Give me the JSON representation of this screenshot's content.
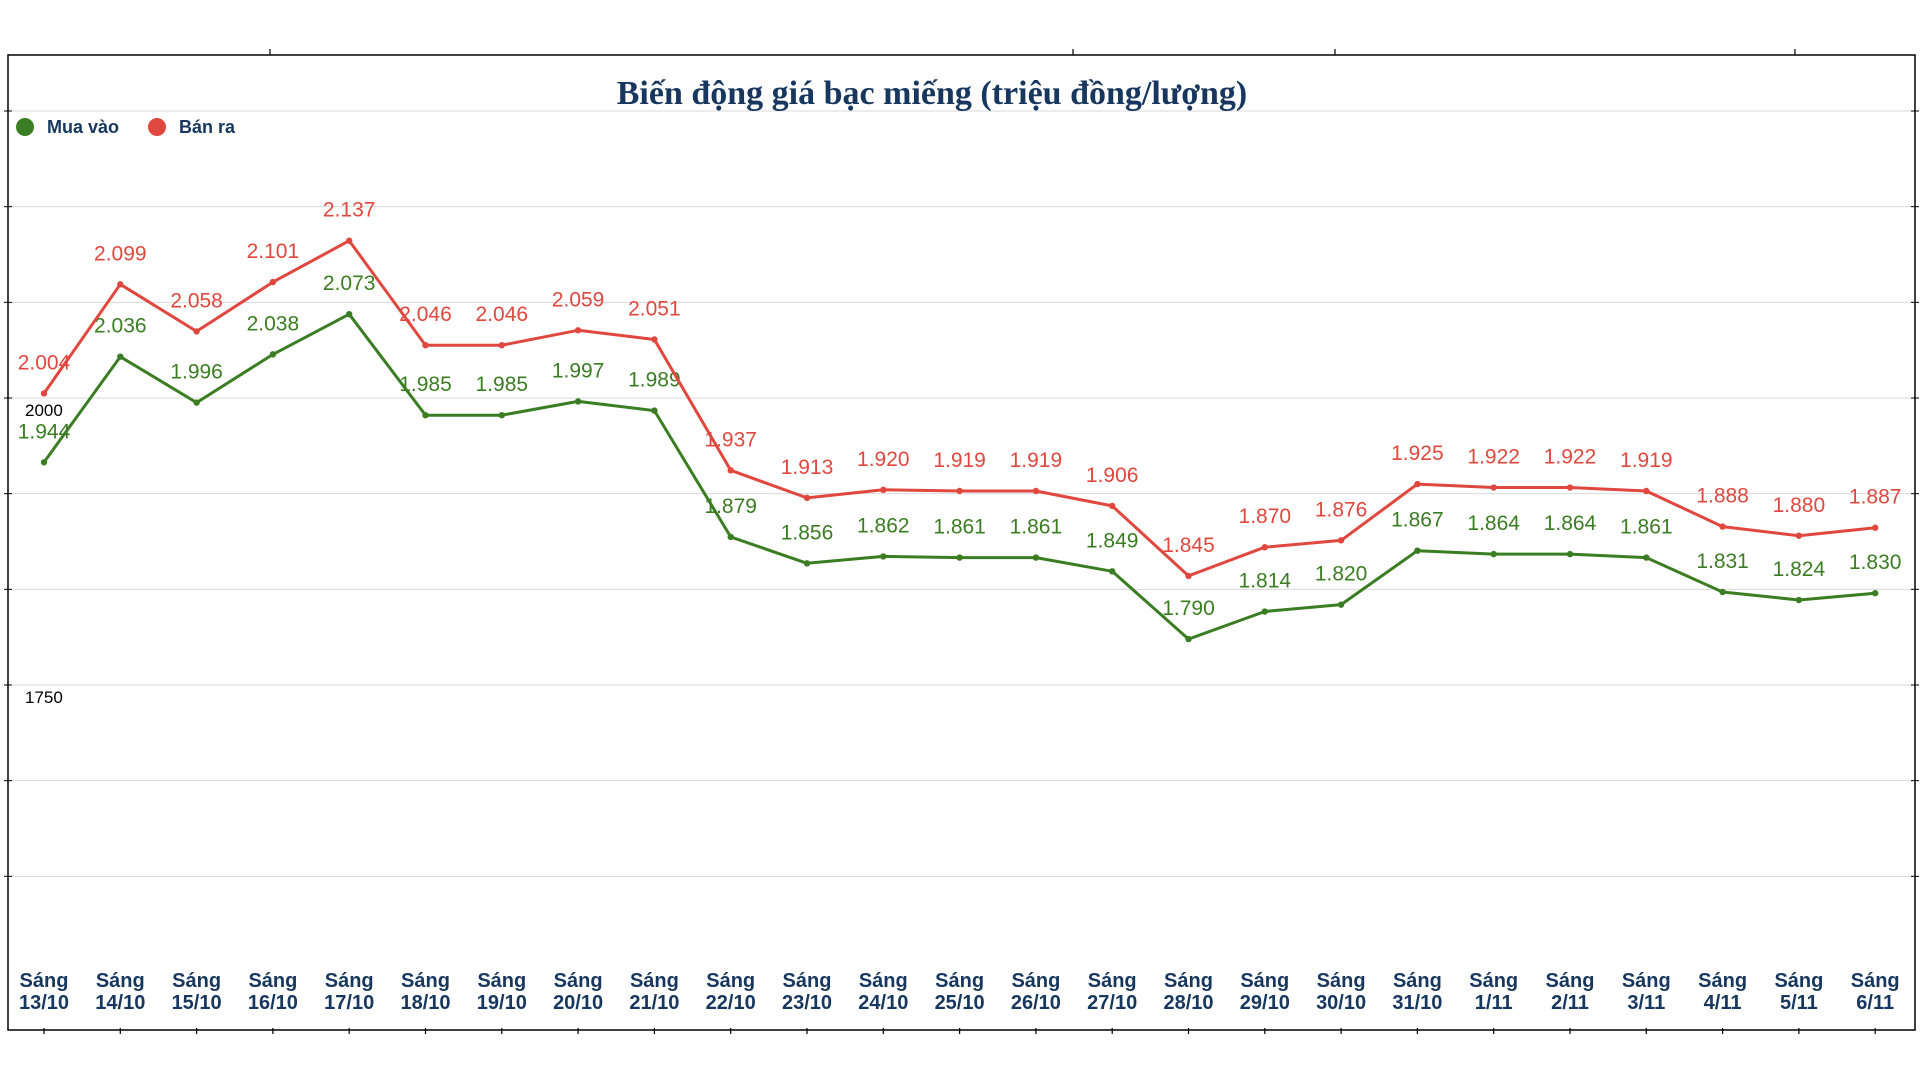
{
  "chart_data": {
    "type": "line",
    "title": "Biến động giá bạc miếng (triệu đồng/lượng)",
    "xlabel": "",
    "ylabel": "",
    "categories": [
      [
        "Sáng",
        "13/10"
      ],
      [
        "Sáng",
        "14/10"
      ],
      [
        "Sáng",
        "15/10"
      ],
      [
        "Sáng",
        "16/10"
      ],
      [
        "Sáng",
        "17/10"
      ],
      [
        "Sáng",
        "18/10"
      ],
      [
        "Sáng",
        "19/10"
      ],
      [
        "Sáng",
        "20/10"
      ],
      [
        "Sáng",
        "21/10"
      ],
      [
        "Sáng",
        "22/10"
      ],
      [
        "Sáng",
        "23/10"
      ],
      [
        "Sáng",
        "24/10"
      ],
      [
        "Sáng",
        "25/10"
      ],
      [
        "Sáng",
        "26/10"
      ],
      [
        "Sáng",
        "27/10"
      ],
      [
        "Sáng",
        "28/10"
      ],
      [
        "Sáng",
        "29/10"
      ],
      [
        "Sáng",
        "30/10"
      ],
      [
        "Sáng",
        "31/10"
      ],
      [
        "Sáng",
        "1/11"
      ],
      [
        "Sáng",
        "2/11"
      ],
      [
        "Sáng",
        "3/11"
      ],
      [
        "Sáng",
        "4/11"
      ],
      [
        "Sáng",
        "5/11"
      ],
      [
        "Sáng",
        "6/11"
      ]
    ],
    "series": [
      {
        "name": "Mua vào",
        "color": "#3b7d23",
        "values": [
          1944,
          2036,
          1996,
          2038,
          2073,
          1985,
          1985,
          1997,
          1989,
          1879,
          1856,
          1862,
          1861,
          1861,
          1849,
          1790,
          1814,
          1820,
          1867,
          1864,
          1864,
          1861,
          1831,
          1824,
          1830
        ],
        "labels": [
          "1.944",
          "2.036",
          "1.996",
          "2.038",
          "2.073",
          "1.985",
          "1.985",
          "1.997",
          "1.989",
          "1.879",
          "1.856",
          "1.862",
          "1.861",
          "1.861",
          "1.849",
          "1.790",
          "1.814",
          "1.820",
          "1.867",
          "1.864",
          "1.864",
          "1.861",
          "1.831",
          "1.824",
          "1.830"
        ]
      },
      {
        "name": "Bán ra",
        "color": "#e0473e",
        "values": [
          2004,
          2099,
          2058,
          2101,
          2137,
          2046,
          2046,
          2059,
          2051,
          1937,
          1913,
          1920,
          1919,
          1919,
          1906,
          1845,
          1870,
          1876,
          1925,
          1922,
          1922,
          1919,
          1888,
          1880,
          1887
        ],
        "labels": [
          "2.004",
          "2.099",
          "2.058",
          "2.101",
          "2.137",
          "2.046",
          "2.046",
          "2.059",
          "2.051",
          "1.937",
          "1.913",
          "1.920",
          "1.919",
          "1.919",
          "1.906",
          "1.845",
          "1.870",
          "1.876",
          "1.925",
          "1.922",
          "1.922",
          "1.919",
          "1.888",
          "1.880",
          "1.887"
        ]
      }
    ],
    "yticks": [
      {
        "value": 2000,
        "label": "2000"
      },
      {
        "value": 1750,
        "label": "1750"
      }
    ],
    "ylim": [
      1500,
      2250
    ],
    "grid": true,
    "legend_position": "top-left",
    "colors": {
      "title": "#17375e",
      "axis_text": "#17375e",
      "grid": "#d9d9d9",
      "frame": "#000000"
    }
  }
}
